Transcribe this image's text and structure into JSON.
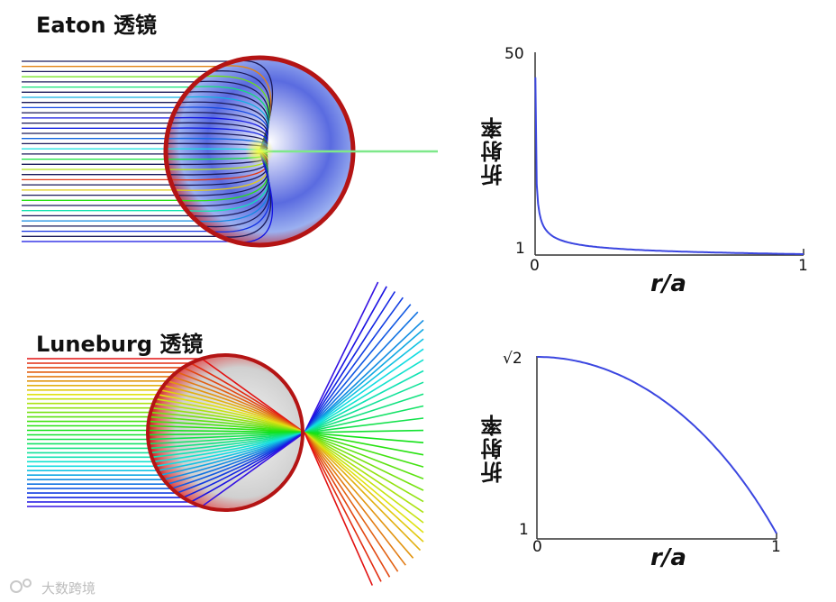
{
  "titles": {
    "eaton": "Eaton 透镜",
    "luneburg": "Luneburg 透镜"
  },
  "eaton_plot": {
    "ylabel": "折射率",
    "xlabel": "r/a",
    "ytick_top": "50",
    "ytick_bottom": "1",
    "xtick_left": "0",
    "xtick_right": "1"
  },
  "luneburg_plot": {
    "ylabel": "折射率",
    "xlabel": "r/a",
    "ytick_top": "√2",
    "ytick_bottom": "1",
    "xtick_left": "0",
    "xtick_right": "1"
  },
  "watermark": "大数跨境",
  "colors": {
    "curve": "#3b46e0",
    "axis": "#333333"
  }
}
